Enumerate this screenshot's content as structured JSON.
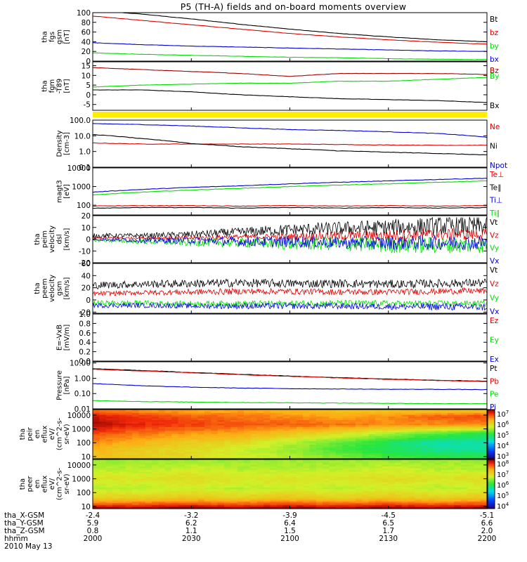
{
  "title": "P5 (TH-A) fields and on-board moments overview",
  "colors": {
    "black": "#000000",
    "red": "#e00000",
    "green": "#00dd00",
    "blue": "#0000dd",
    "yellow": "#ffee00",
    "darkred": "#a00000"
  },
  "chart_data": [
    {
      "type": "line",
      "ylabel": [
        "tha",
        "fgs",
        "gsm",
        "[nT]"
      ],
      "ylim": [
        0,
        100
      ],
      "yticks": [
        "100",
        "80",
        "60",
        "40",
        "20",
        "0"
      ],
      "x": [
        0,
        15,
        30,
        45,
        60,
        75,
        90,
        105,
        120
      ],
      "series": [
        {
          "name": "Bt",
          "color": "#000000",
          "values": [
            104,
            97,
            87,
            76,
            66,
            57,
            50,
            44,
            40
          ]
        },
        {
          "name": "bz",
          "color": "#e00000",
          "values": [
            93,
            84,
            75,
            66,
            57,
            50,
            44,
            39,
            35
          ]
        },
        {
          "name": "by",
          "color": "#00dd00",
          "values": [
            17,
            14,
            12,
            10,
            8,
            7,
            5,
            4,
            3
          ]
        },
        {
          "name": "bx",
          "color": "#0000dd",
          "values": [
            38,
            34,
            31,
            29,
            27,
            25,
            23,
            21,
            20
          ]
        }
      ]
    },
    {
      "type": "line",
      "ylabel": [
        "tha",
        "fgm",
        "-T89",
        "[nT]"
      ],
      "ylim": [
        -8,
        17
      ],
      "yticks": [
        "15",
        "10",
        "5",
        "0",
        "-5"
      ],
      "x": [
        0,
        15,
        30,
        45,
        60,
        75,
        90,
        105,
        120
      ],
      "series": [
        {
          "name": "Bz",
          "color": "#a00000",
          "values": [
            14,
            13,
            12,
            11,
            9.5,
            11,
            11,
            11,
            10.5
          ]
        },
        {
          "name": "By",
          "color": "#00dd00",
          "values": [
            4,
            5,
            5.5,
            6,
            6,
            7,
            7,
            8,
            9
          ]
        },
        {
          "name": "Bx",
          "color": "#000000",
          "values": [
            2.5,
            2.5,
            1.5,
            0,
            -1,
            -2,
            -2.5,
            -3,
            -4
          ]
        }
      ]
    },
    {
      "type": "line",
      "ylabel": [
        "Density",
        "[cm-3]"
      ],
      "yscale": "log",
      "ylim": [
        0.1,
        100
      ],
      "yticks": [
        "100.0",
        "10.0",
        "1.0",
        "0.1"
      ],
      "x": [
        0,
        15,
        30,
        45,
        60,
        75,
        90,
        105,
        120
      ],
      "series": [
        {
          "name": "Ne",
          "color": "#e00000",
          "values": [
            3.5,
            3.0,
            3.0,
            3.0,
            3.0,
            2.8,
            2.6,
            2.5,
            2.5
          ]
        },
        {
          "name": "Ni",
          "color": "#000000",
          "values": [
            12,
            6.5,
            3.2,
            2.0,
            1.5,
            1.1,
            0.9,
            0.75,
            0.6
          ]
        },
        {
          "name": "Npot",
          "color": "#0000dd",
          "values": [
            60,
            52,
            42,
            32,
            25,
            22,
            18,
            14,
            8
          ]
        }
      ]
    },
    {
      "type": "line",
      "ylabel": [
        "magt3",
        "[eV]"
      ],
      "yscale": "log",
      "ylim": [
        30,
        10000
      ],
      "yticks": [
        "10000",
        "1000",
        "100"
      ],
      "x": [
        0,
        15,
        30,
        45,
        60,
        75,
        90,
        105,
        120
      ],
      "series": [
        {
          "name": "Te⊥",
          "color": "#e00000",
          "values": [
            90,
            95,
            95,
            90,
            95,
            90,
            95,
            90,
            95
          ]
        },
        {
          "name": "Te∥",
          "color": "#000000",
          "values": [
            70,
            75,
            75,
            70,
            75,
            70,
            75,
            70,
            75
          ]
        },
        {
          "name": "Ti⊥",
          "color": "#0000dd",
          "values": [
            500,
            700,
            900,
            1100,
            1400,
            1700,
            2000,
            2400,
            2800
          ]
        },
        {
          "name": "Ti∥",
          "color": "#00dd00",
          "values": [
            350,
            500,
            650,
            800,
            1000,
            1200,
            1400,
            1700,
            2000
          ]
        }
      ]
    },
    {
      "type": "line",
      "ylabel": [
        "tha",
        "peim",
        "velocity",
        "dsl",
        "[km/s]"
      ],
      "ylim": [
        -20,
        20
      ],
      "yticks": [
        "20",
        "10",
        "0",
        "-10",
        "-20"
      ],
      "series": [
        {
          "name": "Vt",
          "color": "#000000",
          "base": [
            3,
            3,
            4,
            6,
            8,
            9,
            10,
            11,
            11
          ],
          "noise": [
            2,
            2,
            3,
            4,
            5,
            6,
            7,
            8,
            8
          ]
        },
        {
          "name": "Vz",
          "color": "#e00000",
          "base": [
            1,
            1,
            1,
            2,
            2,
            3,
            3,
            4,
            4
          ],
          "noise": [
            1,
            1,
            2,
            2,
            3,
            4,
            5,
            5,
            5
          ]
        },
        {
          "name": "Vy",
          "color": "#00dd00",
          "base": [
            -1,
            -2,
            -3,
            -3,
            -4,
            -4,
            -5,
            -5,
            -5
          ],
          "noise": [
            1,
            2,
            3,
            4,
            5,
            6,
            7,
            7,
            7
          ]
        },
        {
          "name": "Vx",
          "color": "#0000dd",
          "base": [
            0,
            -1,
            -1,
            -2,
            -2,
            -3,
            -3,
            -3,
            -3
          ],
          "noise": [
            1,
            2,
            3,
            4,
            5,
            5,
            6,
            6,
            6
          ]
        }
      ]
    },
    {
      "type": "line",
      "ylabel": [
        "tha",
        "peem",
        "velocity",
        "gsm",
        "[km/s]"
      ],
      "ylim": [
        -22,
        60
      ],
      "yticks": [
        "60",
        "40",
        "20",
        "0",
        "-20"
      ],
      "series": [
        {
          "name": "Vt",
          "color": "#000000",
          "base": [
            24,
            26,
            27,
            28,
            27,
            27,
            26,
            27,
            28
          ],
          "noise": [
            6,
            6,
            7,
            7,
            7,
            7,
            7,
            7,
            7
          ]
        },
        {
          "name": "Vz",
          "color": "#e00000",
          "base": [
            10,
            12,
            13,
            14,
            14,
            13,
            13,
            14,
            15
          ],
          "noise": [
            4,
            4,
            5,
            5,
            5,
            5,
            5,
            5,
            5
          ]
        },
        {
          "name": "Vy",
          "color": "#00dd00",
          "base": [
            -5,
            -5,
            -6,
            -6,
            -6,
            -5,
            -6,
            -6,
            -6
          ],
          "noise": [
            4,
            4,
            4,
            5,
            5,
            5,
            5,
            5,
            5
          ]
        },
        {
          "name": "Vx",
          "color": "#0000dd",
          "base": [
            -9,
            -9,
            -10,
            -10,
            -10,
            -10,
            -11,
            -11,
            -12
          ],
          "noise": [
            4,
            4,
            4,
            5,
            5,
            5,
            5,
            6,
            6
          ]
        }
      ]
    },
    {
      "type": "line",
      "ylabel": [
        "E=-VxB",
        "[mV/m]"
      ],
      "ylim": [
        0,
        1
      ],
      "yticks": [
        "1.0",
        "0.8",
        "0.6",
        "0.4",
        "0.2",
        "0.0"
      ],
      "series": [
        {
          "name": "Ez",
          "color": "#e00000",
          "values": []
        },
        {
          "name": "Ey",
          "color": "#00dd00",
          "values": []
        },
        {
          "name": "Ex",
          "color": "#0000dd",
          "values": []
        }
      ]
    },
    {
      "type": "line",
      "ylabel": [
        "Pressure",
        "[nPa]"
      ],
      "yscale": "log",
      "ylim": [
        0.01,
        12
      ],
      "yticks": [
        "10.00",
        "1.00",
        "0.10",
        "0.01"
      ],
      "x": [
        0,
        15,
        30,
        45,
        60,
        75,
        90,
        105,
        120
      ],
      "series": [
        {
          "name": "Pt",
          "color": "#000000",
          "values": [
            4.2,
            3.2,
            2.4,
            1.8,
            1.4,
            1.1,
            0.9,
            0.75,
            0.65
          ]
        },
        {
          "name": "Pb",
          "color": "#e00000",
          "values": [
            3.9,
            3.0,
            2.3,
            1.7,
            1.35,
            1.05,
            0.85,
            0.72,
            0.6
          ]
        },
        {
          "name": "Pe",
          "color": "#00dd00",
          "values": [
            0.035,
            0.03,
            0.028,
            0.026,
            0.025,
            0.024,
            0.023,
            0.022,
            0.022
          ]
        },
        {
          "name": "Pi",
          "color": "#0000dd",
          "values": [
            0.45,
            0.32,
            0.26,
            0.23,
            0.21,
            0.2,
            0.19,
            0.19,
            0.18
          ]
        }
      ]
    },
    {
      "type": "heatmap",
      "ylabel": [
        "tha",
        "peir",
        "en",
        "eflux",
        "eV/",
        "(cm^2-s-",
        "sr-eV)"
      ],
      "yscale": "log",
      "ylim": [
        7,
        25000
      ],
      "yticks": [
        "10000",
        "1000",
        "100",
        "10"
      ],
      "colorbar": {
        "range": [
          "10^3",
          "10^7"
        ],
        "ticks": [
          "10^7",
          "10^6",
          "10^5",
          "10^4",
          "10^3"
        ]
      },
      "profile": [
        {
          "energy": 20000,
          "levels": [
            6.4,
            6.3,
            6.2,
            6.2,
            6.1,
            6.0,
            6.0,
            6.0,
            6.0
          ]
        },
        {
          "energy": 8000,
          "levels": [
            6.8,
            6.6,
            6.5,
            6.4,
            6.3,
            6.2,
            6.3,
            6.5,
            6.6
          ]
        },
        {
          "energy": 2000,
          "levels": [
            6.9,
            6.7,
            6.6,
            6.5,
            6.5,
            6.4,
            6.3,
            6.3,
            6.3
          ]
        },
        {
          "energy": 500,
          "levels": [
            6.6,
            6.4,
            6.3,
            6.2,
            6.0,
            5.8,
            5.5,
            5.2,
            5.0
          ]
        },
        {
          "energy": 100,
          "levels": [
            6.3,
            6.1,
            5.9,
            5.8,
            5.5,
            5.2,
            4.9,
            4.6,
            4.6
          ]
        },
        {
          "energy": 30,
          "levels": [
            6.1,
            5.9,
            5.8,
            5.6,
            5.4,
            5.1,
            4.9,
            4.7,
            4.7
          ]
        },
        {
          "energy": 8,
          "levels": [
            6.0,
            5.9,
            5.8,
            5.6,
            5.5,
            5.3,
            5.1,
            5.0,
            5.0
          ]
        }
      ]
    },
    {
      "type": "heatmap",
      "ylabel": [
        "tha",
        "peer",
        "en",
        "eflux",
        "eV/",
        "(cm^2-s-",
        "sr-eV)"
      ],
      "yscale": "log",
      "ylim": [
        7,
        25000
      ],
      "yticks": [
        "10000",
        "1000",
        "100",
        "10"
      ],
      "colorbar": {
        "range": [
          "10^4",
          "10^8"
        ],
        "ticks": [
          "10^8",
          "10^7",
          "10^6",
          "10^5",
          "10^4"
        ]
      },
      "profile": [
        {
          "energy": 20000,
          "levels": [
            6.4,
            6.4,
            6.4,
            6.4,
            6.4,
            6.4,
            6.4,
            6.4,
            6.4
          ]
        },
        {
          "energy": 5000,
          "levels": [
            6.5,
            6.5,
            6.6,
            6.5,
            6.5,
            6.5,
            6.6,
            6.5,
            6.5
          ]
        },
        {
          "energy": 1000,
          "levels": [
            6.7,
            6.7,
            6.8,
            6.7,
            6.7,
            6.7,
            6.8,
            6.7,
            6.8
          ]
        },
        {
          "energy": 200,
          "levels": [
            6.5,
            6.5,
            6.6,
            6.5,
            6.6,
            6.5,
            6.6,
            6.5,
            6.6
          ]
        },
        {
          "energy": 40,
          "levels": [
            6.9,
            6.9,
            7.0,
            6.9,
            7.0,
            6.9,
            7.0,
            6.9,
            7.0
          ]
        },
        {
          "energy": 12,
          "levels": [
            7.6,
            7.6,
            7.7,
            7.6,
            7.7,
            7.6,
            7.7,
            7.6,
            7.7
          ]
        },
        {
          "energy": 8,
          "levels": [
            7.9,
            7.9,
            8.0,
            7.9,
            8.0,
            7.9,
            8.0,
            7.9,
            8.0
          ]
        }
      ]
    }
  ],
  "footer": {
    "rows": [
      {
        "label": "tha_X-GSM",
        "values": [
          "-2.4",
          "-3.2",
          "-3.9",
          "-4.5",
          "-5.1"
        ]
      },
      {
        "label": "tha_Y-GSM",
        "values": [
          "5.9",
          "6.2",
          "6.4",
          "6.5",
          "6.6"
        ]
      },
      {
        "label": "tha_Z-GSM",
        "values": [
          "0.8",
          "1.1",
          "1.5",
          "1.7",
          "2.0"
        ]
      },
      {
        "label": "hhmm",
        "values": [
          "2000",
          "2030",
          "2100",
          "2130",
          "2200"
        ]
      }
    ],
    "date": "2010 May 13"
  }
}
